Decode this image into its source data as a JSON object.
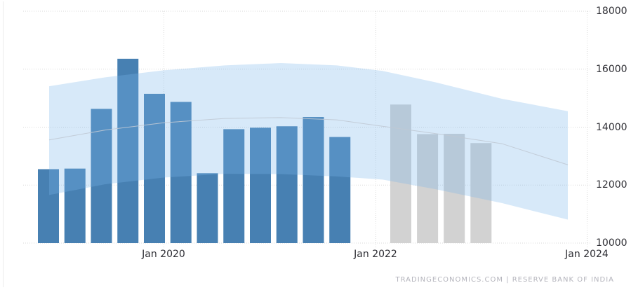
{
  "chart_data": {
    "type": "bar",
    "title": "",
    "source_text": "TRADINGECONOMICS.COM | RESERVE BANK OF INDIA",
    "y_axis": {
      "ticks": [
        18000,
        16000,
        14000,
        12000,
        10000
      ],
      "tick_labels": [
        "18000",
        "16000",
        "14000",
        "12000",
        "10000"
      ],
      "min": 10000,
      "max": 18000,
      "grid": true
    },
    "x_axis": {
      "tick_labels": [
        "Jan 2020",
        "Jan 2022",
        "Jan 2024"
      ],
      "grid": true
    },
    "series": [
      {
        "name": "actual",
        "type": "bar",
        "color": "#4780B2",
        "values": [
          12550,
          12570,
          14630,
          16360,
          15150,
          14870,
          12410,
          13930,
          13980,
          14030,
          14350,
          13660
        ]
      },
      {
        "name": "forecast",
        "type": "bar",
        "color": "#D2D2D2",
        "values": [
          14780,
          13760,
          13770,
          13450
        ]
      }
    ],
    "forecast_band": {
      "color": "#7CB5EC",
      "opacity": 0.3,
      "median_color": "#C0C9D4",
      "upper": [
        15410,
        15720,
        15960,
        16130,
        16210,
        16130,
        15940,
        15550,
        14980,
        14550
      ],
      "median": [
        13560,
        13900,
        14150,
        14300,
        14330,
        14250,
        14030,
        13780,
        13430,
        12700
      ],
      "lower": [
        11660,
        12030,
        12260,
        12390,
        12380,
        12300,
        12190,
        11860,
        11380,
        10810
      ]
    },
    "colors": {
      "grid": "#DADADA",
      "axis_text": "#2F2F35",
      "left_border": "#ECECEC",
      "attribution_text": "#B4B4BC"
    }
  }
}
